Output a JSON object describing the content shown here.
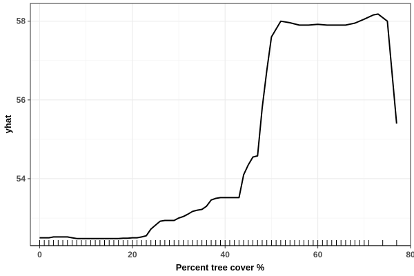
{
  "chart_data": {
    "type": "line",
    "title": "",
    "xlabel": "Percent tree cover %",
    "ylabel": "yhat",
    "xlim": [
      -2,
      80
    ],
    "ylim": [
      52.3,
      58.45
    ],
    "x_ticks": [
      0,
      20,
      40,
      60,
      80
    ],
    "y_ticks": [
      54,
      56,
      58
    ],
    "x_tick_labels": [
      "0",
      "20",
      "40",
      "60",
      "80"
    ],
    "y_tick_labels": [
      "54",
      "56",
      "58"
    ],
    "grid": true,
    "rug": [
      0,
      1,
      2,
      3,
      4,
      5,
      6,
      7,
      8,
      9,
      10,
      11,
      12,
      13,
      14,
      15,
      16,
      17,
      18,
      19,
      20,
      21,
      22,
      23,
      24,
      25,
      26,
      27,
      28,
      29,
      30,
      31,
      32,
      33,
      34,
      35,
      36,
      37,
      38,
      39,
      40,
      41,
      42,
      43,
      44,
      45,
      46,
      47,
      48,
      49,
      50,
      51,
      52,
      53,
      54,
      55,
      56,
      57,
      58,
      59,
      60,
      61,
      62,
      63,
      64,
      65,
      66,
      67,
      68,
      69,
      70,
      71,
      74,
      77
    ],
    "series": [
      {
        "x": [
          0,
          1,
          2,
          3,
          4,
          5,
          6,
          7,
          8,
          9,
          10,
          11,
          12,
          13,
          14,
          15,
          16,
          17,
          18,
          19,
          20,
          21,
          22,
          23,
          24,
          25,
          26,
          27,
          28,
          29,
          30,
          31,
          32,
          33,
          34,
          35,
          36,
          37,
          38,
          39,
          40,
          41,
          42,
          43,
          44,
          45,
          46,
          47,
          48,
          49,
          50,
          52,
          54,
          56,
          58,
          60,
          62,
          64,
          66,
          68,
          70,
          72,
          73,
          75,
          77
        ],
        "y": [
          52.5,
          52.5,
          52.5,
          52.52,
          52.52,
          52.52,
          52.52,
          52.5,
          52.48,
          52.48,
          52.48,
          52.48,
          52.48,
          52.48,
          52.48,
          52.48,
          52.48,
          52.48,
          52.49,
          52.49,
          52.5,
          52.5,
          52.52,
          52.55,
          52.72,
          52.82,
          52.92,
          52.94,
          52.94,
          52.94,
          53.0,
          53.04,
          53.1,
          53.17,
          53.2,
          53.22,
          53.3,
          53.46,
          53.5,
          53.52,
          53.52,
          53.52,
          53.52,
          53.52,
          54.1,
          54.35,
          54.55,
          54.58,
          55.8,
          56.75,
          57.6,
          58.0,
          57.96,
          57.9,
          57.9,
          57.92,
          57.9,
          57.9,
          57.9,
          57.95,
          58.05,
          58.16,
          58.18,
          58.0,
          55.4
        ]
      }
    ]
  }
}
